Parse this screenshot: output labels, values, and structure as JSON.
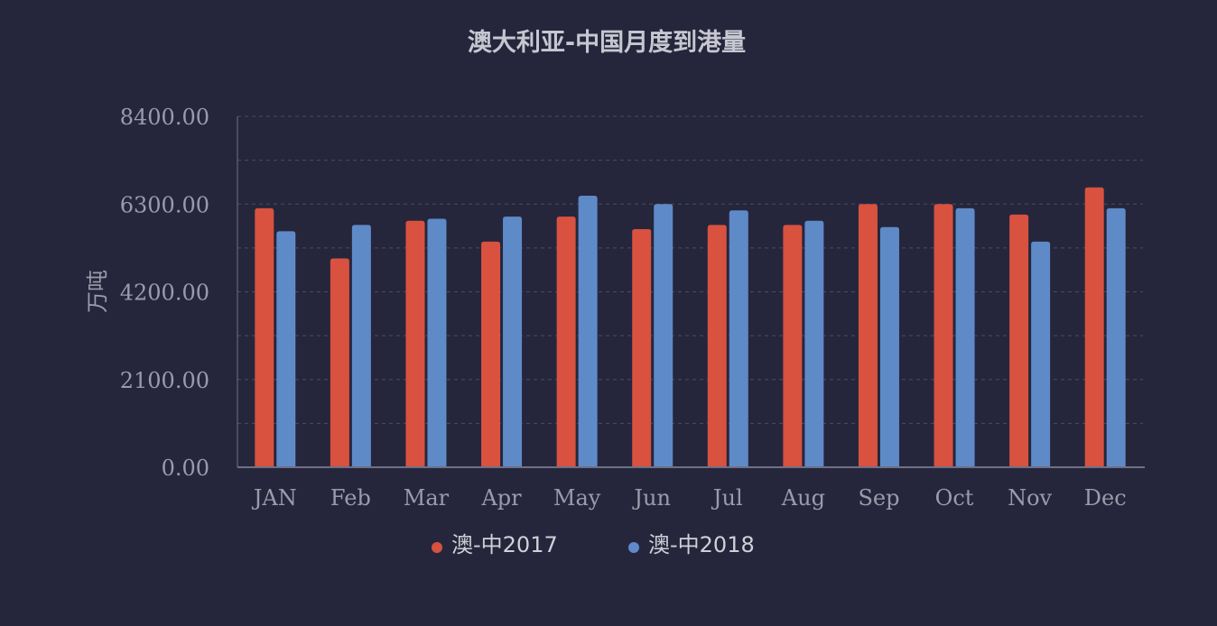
{
  "colors": {
    "background": "#25263c",
    "series_2017": "#d9513f",
    "series_2018": "#5f8ac8",
    "text": "#9a9cab",
    "title": "#c6c7d0",
    "grid": "#4a4c62",
    "axis": "#6e7086"
  },
  "chart_data": {
    "type": "bar",
    "title": "澳大利亚-中国月度到港量",
    "xlabel": "",
    "ylabel": "万吨",
    "ylim": [
      0,
      8400
    ],
    "yticks": [
      "8400.00",
      "6300.00",
      "4200.00",
      "2100.00",
      "0.00"
    ],
    "categories": [
      "JAN",
      "Feb",
      "Mar",
      "Apr",
      "May",
      "Jun",
      "Jul",
      "Aug",
      "Sep",
      "Oct",
      "Nov",
      "Dec"
    ],
    "series": [
      {
        "name": "澳-中2017",
        "values": [
          6200,
          5000,
          5900,
          5400,
          6000,
          5700,
          5800,
          5800,
          6300,
          6300,
          6050,
          6700
        ]
      },
      {
        "name": "澳-中2018",
        "values": [
          5650,
          5800,
          5950,
          6000,
          6500,
          6300,
          6150,
          5900,
          5750,
          6200,
          5400,
          6200
        ]
      }
    ],
    "grid": true,
    "legend_position": "bottom"
  }
}
